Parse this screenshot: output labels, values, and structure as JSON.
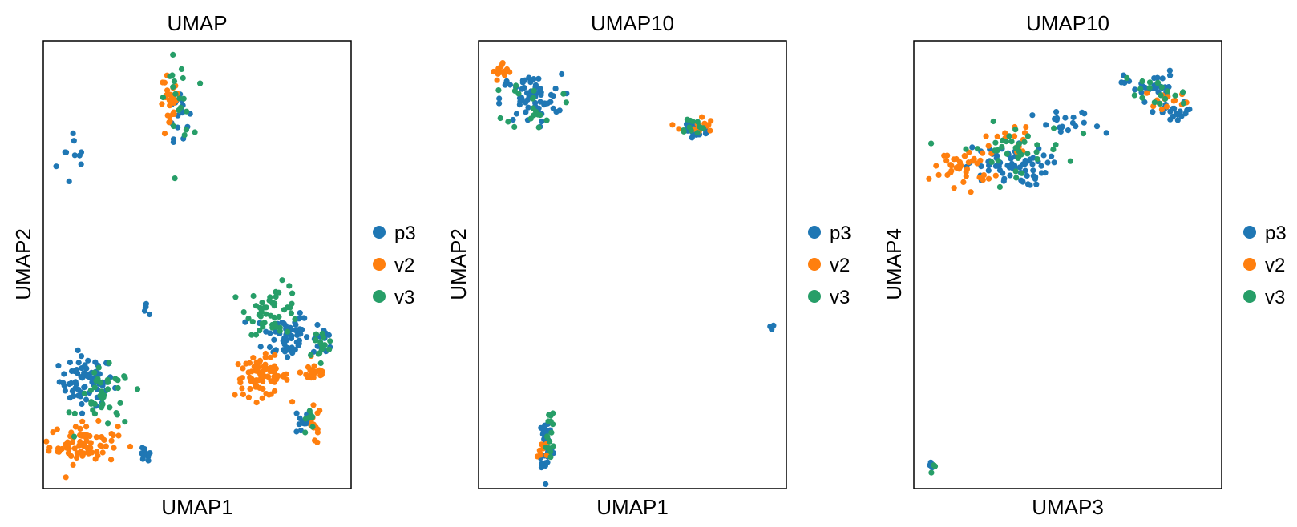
{
  "chart_data": [
    {
      "type": "scatter",
      "title": "UMAP",
      "xlabel": "UMAP1",
      "ylabel": "UMAP2",
      "xlim": [
        0,
        100
      ],
      "ylim": [
        0,
        100
      ],
      "grid": false,
      "legend_position": "right",
      "series": [
        {
          "name": "p3",
          "color": "#1f77b4",
          "clusters": [
            {
              "cx": 11,
              "cy": 74,
              "rx": 6,
              "ry": 7,
              "n": 10
            },
            {
              "cx": 80,
              "cy": 35,
              "rx": 5,
              "ry": 6,
              "n": 6
            },
            {
              "cx": 14,
              "cy": 24,
              "rx": 8,
              "ry": 5,
              "n": 70
            },
            {
              "cx": 33,
              "cy": 7,
              "rx": 2,
              "ry": 2,
              "n": 10
            },
            {
              "cx": 91,
              "cy": 33,
              "rx": 3,
              "ry": 3,
              "n": 12
            },
            {
              "cx": 84,
              "cy": 15,
              "rx": 2,
              "ry": 3,
              "n": 14
            },
            {
              "cx": 79,
              "cy": 34,
              "rx": 7,
              "ry": 5,
              "n": 55
            },
            {
              "cx": 44,
              "cy": 85,
              "rx": 3,
              "ry": 6,
              "n": 16
            },
            {
              "cx": 33,
              "cy": 40,
              "rx": 1,
              "ry": 1,
              "n": 5
            }
          ]
        },
        {
          "name": "v2",
          "color": "#ff7f0e",
          "clusters": [
            {
              "cx": 13,
              "cy": 10,
              "rx": 10,
              "ry": 4,
              "n": 75
            },
            {
              "cx": 71,
              "cy": 25,
              "rx": 8,
              "ry": 4,
              "n": 75
            },
            {
              "cx": 88,
              "cy": 26,
              "rx": 4,
              "ry": 2,
              "n": 25
            },
            {
              "cx": 88,
              "cy": 14,
              "rx": 2,
              "ry": 4,
              "n": 14
            },
            {
              "cx": 41,
              "cy": 85,
              "rx": 3,
              "ry": 7,
              "n": 26
            }
          ]
        },
        {
          "name": "v3",
          "color": "#279e68",
          "clusters": [
            {
              "cx": 20,
              "cy": 20,
              "rx": 8,
              "ry": 6,
              "n": 40
            },
            {
              "cx": 75,
              "cy": 40,
              "rx": 8,
              "ry": 5,
              "n": 50
            },
            {
              "cx": 90,
              "cy": 32,
              "rx": 4,
              "ry": 3,
              "n": 16
            },
            {
              "cx": 44,
              "cy": 87,
              "rx": 4,
              "ry": 8,
              "n": 20
            },
            {
              "cx": 86,
              "cy": 15,
              "rx": 2,
              "ry": 4,
              "n": 8
            }
          ]
        }
      ]
    },
    {
      "type": "scatter",
      "title": "UMAP10",
      "xlabel": "UMAP1",
      "ylabel": "UMAP2",
      "xlim": [
        0,
        100
      ],
      "ylim": [
        0,
        100
      ],
      "grid": false,
      "legend_position": "right",
      "series": [
        {
          "name": "p3",
          "color": "#1f77b4",
          "clusters": [
            {
              "cx": 17,
              "cy": 87,
              "rx": 9,
              "ry": 5,
              "n": 60
            },
            {
              "cx": 70,
              "cy": 80,
              "rx": 4,
              "ry": 3,
              "n": 20
            },
            {
              "cx": 22,
              "cy": 10,
              "rx": 2,
              "ry": 6,
              "n": 35
            },
            {
              "cx": 95,
              "cy": 36,
              "rx": 1,
              "ry": 1,
              "n": 5
            }
          ]
        },
        {
          "name": "v2",
          "color": "#ff7f0e",
          "clusters": [
            {
              "cx": 8,
              "cy": 93,
              "rx": 3,
              "ry": 2,
              "n": 16
            },
            {
              "cx": 71,
              "cy": 81,
              "rx": 5,
              "ry": 2,
              "n": 14
            },
            {
              "cx": 21,
              "cy": 9,
              "rx": 2,
              "ry": 2,
              "n": 8
            }
          ]
        },
        {
          "name": "v3",
          "color": "#279e68",
          "clusters": [
            {
              "cx": 18,
              "cy": 86,
              "rx": 8,
              "ry": 5,
              "n": 20
            },
            {
              "cx": 69,
              "cy": 81,
              "rx": 4,
              "ry": 2,
              "n": 12
            },
            {
              "cx": 23,
              "cy": 12,
              "rx": 2,
              "ry": 8,
              "n": 15
            }
          ]
        }
      ]
    },
    {
      "type": "scatter",
      "title": "UMAP10",
      "xlabel": "UMAP3",
      "ylabel": "UMAP4",
      "xlim": [
        0,
        100
      ],
      "ylim": [
        0,
        100
      ],
      "grid": false,
      "legend_position": "right",
      "series": [
        {
          "name": "p3",
          "color": "#1f77b4",
          "clusters": [
            {
              "cx": 30,
              "cy": 72,
              "rx": 12,
              "ry": 4,
              "n": 70
            },
            {
              "cx": 77,
              "cy": 90,
              "rx": 8,
              "ry": 3,
              "n": 30
            },
            {
              "cx": 85,
              "cy": 84,
              "rx": 6,
              "ry": 2,
              "n": 20
            },
            {
              "cx": 50,
              "cy": 81,
              "rx": 10,
              "ry": 3,
              "n": 20
            },
            {
              "cx": 6,
              "cy": 5,
              "rx": 1,
              "ry": 1,
              "n": 5
            }
          ]
        },
        {
          "name": "v2",
          "color": "#ff7f0e",
          "clusters": [
            {
              "cx": 16,
              "cy": 72,
              "rx": 9,
              "ry": 4,
              "n": 40
            },
            {
              "cx": 83,
              "cy": 87,
              "rx": 7,
              "ry": 2,
              "n": 14
            },
            {
              "cx": 32,
              "cy": 78,
              "rx": 8,
              "ry": 3,
              "n": 14
            }
          ]
        },
        {
          "name": "v3",
          "color": "#279e68",
          "clusters": [
            {
              "cx": 32,
              "cy": 76,
              "rx": 16,
              "ry": 5,
              "n": 40
            },
            {
              "cx": 78,
              "cy": 88,
              "rx": 10,
              "ry": 3,
              "n": 18
            },
            {
              "cx": 6,
              "cy": 5,
              "rx": 1,
              "ry": 1,
              "n": 3
            }
          ]
        }
      ]
    }
  ]
}
